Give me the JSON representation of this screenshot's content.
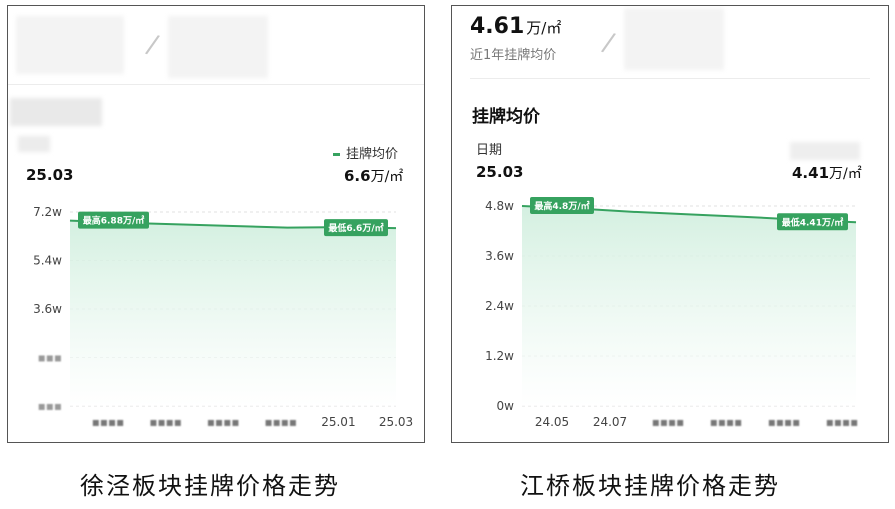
{
  "panels": [
    {
      "header": {
        "stat_value": "",
        "stat_unit": "",
        "stat_sub": ""
      },
      "section_title": "",
      "date_label": "",
      "date_value": "25.03",
      "legend": "挂牌均价",
      "price_value": "6.6",
      "price_unit": "万/㎡"
    },
    {
      "header": {
        "stat_value": "4.61",
        "stat_unit": "万/㎡",
        "stat_sub": "近1年挂牌均价"
      },
      "section_title": "挂牌均价",
      "date_label": "日期",
      "date_value": "25.03",
      "legend": "",
      "price_value": "4.41",
      "price_unit": "万/㎡"
    }
  ],
  "captions": [
    "徐泾板块挂牌价格走势",
    "江桥板块挂牌价格走势"
  ],
  "colors": {
    "line": "#36a25f",
    "fill_top": "#cfeedd",
    "fill_bottom": "#ffffff",
    "badge": "#36a25f"
  },
  "chart_data": [
    {
      "type": "area",
      "title": "徐泾板块挂牌价格走势",
      "series": [
        {
          "name": "挂牌均价",
          "x": [
            0,
            1,
            2,
            3,
            4,
            5,
            6
          ],
          "values": [
            6.88,
            6.8,
            6.74,
            6.68,
            6.62,
            6.64,
            6.6
          ]
        }
      ],
      "x_tick_labels": [
        "",
        "",
        "",
        "",
        "25.01",
        "25.03"
      ],
      "y_ticks": [
        "7.2w",
        "5.4w",
        "3.6w",
        "",
        ""
      ],
      "y_tick_values": [
        7.2,
        5.4,
        3.6,
        1.8,
        0
      ],
      "ylim": [
        0,
        7.2
      ],
      "annotations": [
        {
          "text": "最高6.88万/㎡",
          "x": 0,
          "value": 6.88
        },
        {
          "text": "最低6.6万/㎡",
          "x": 6,
          "value": 6.6
        }
      ],
      "grid": true,
      "unit": "万/㎡"
    },
    {
      "type": "area",
      "title": "江桥板块挂牌价格走势",
      "series": [
        {
          "name": "挂牌均价",
          "x": [
            0,
            1,
            2,
            3,
            4,
            5,
            6
          ],
          "values": [
            4.8,
            4.74,
            4.66,
            4.6,
            4.54,
            4.47,
            4.41
          ]
        }
      ],
      "x_tick_labels": [
        "24.05",
        "24.07",
        "",
        "",
        "",
        ""
      ],
      "y_ticks": [
        "4.8w",
        "3.6w",
        "2.4w",
        "1.2w",
        "0w"
      ],
      "y_tick_values": [
        4.8,
        3.6,
        2.4,
        1.2,
        0
      ],
      "ylim": [
        0,
        4.8
      ],
      "annotations": [
        {
          "text": "最高4.8万/㎡",
          "x": 0,
          "value": 4.8
        },
        {
          "text": "最低4.41万/㎡",
          "x": 6,
          "value": 4.41
        }
      ],
      "grid": true,
      "unit": "万/㎡"
    }
  ]
}
